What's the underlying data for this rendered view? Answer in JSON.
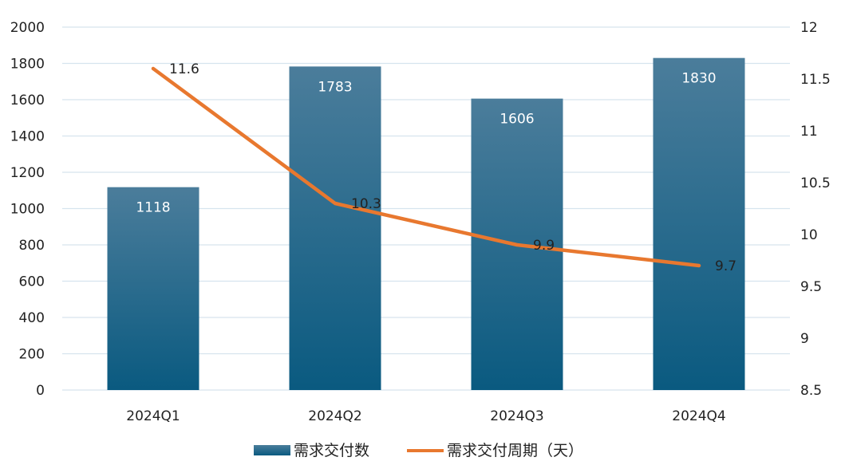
{
  "chart_data": {
    "type": "bar",
    "categories": [
      "2024Q1",
      "2024Q2",
      "2024Q3",
      "2024Q4"
    ],
    "series": [
      {
        "name": "需求交付数",
        "type": "bar",
        "axis": "left",
        "values": [
          1118,
          1783,
          1606,
          1830
        ],
        "labels": [
          "1118",
          "1783",
          "1606",
          "1830"
        ]
      },
      {
        "name": "需求交付周期（天）",
        "type": "line",
        "axis": "right",
        "values": [
          11.6,
          10.3,
          9.9,
          9.7
        ],
        "labels": [
          "11.6",
          "10.3",
          "9.9",
          "9.7"
        ]
      }
    ],
    "y_left": {
      "min": 0,
      "max": 2000,
      "ticks": [
        "0",
        "200",
        "400",
        "600",
        "800",
        "1000",
        "1200",
        "1400",
        "1600",
        "1800",
        "2000"
      ]
    },
    "y_right": {
      "min": 8.5,
      "max": 12,
      "ticks": [
        "8.5",
        "9",
        "9.5",
        "10",
        "10.5",
        "11",
        "11.5",
        "12"
      ]
    },
    "grid": true,
    "legend_position": "bottom-center",
    "colors": {
      "bar_top": "#4b7d9b",
      "bar_bottom": "#0a5a80",
      "line": "#e8782f",
      "grid": "#d6e4ee",
      "text": "#222222"
    }
  }
}
